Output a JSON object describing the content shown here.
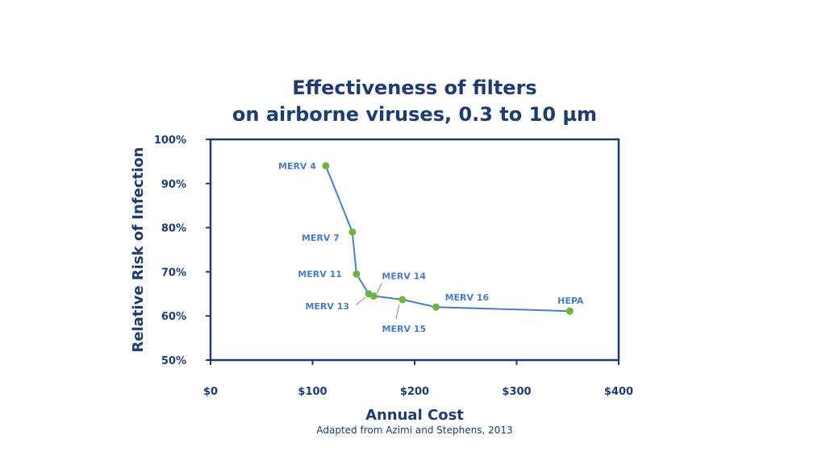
{
  "chart_data": {
    "type": "line",
    "title_line1": "Effectiveness of filters",
    "title_line2": "on airborne viruses, 0.3 to 10 µm",
    "xlabel": "Annual Cost",
    "ylabel": "Relative Risk of Infection",
    "source": "Adapted from Azimi and Stephens, 2013",
    "xlim": [
      0,
      400
    ],
    "ylim": [
      50,
      100
    ],
    "x_ticks": [
      0,
      100,
      200,
      300,
      400
    ],
    "x_tick_labels": [
      "$0",
      "$100",
      "$200",
      "$300",
      "$400"
    ],
    "y_ticks": [
      50,
      60,
      70,
      80,
      90,
      100
    ],
    "y_tick_labels": [
      "50%",
      "60%",
      "70%",
      "80%",
      "90%",
      "100%"
    ],
    "grid": false,
    "colors": {
      "axis": "#1f3c6e",
      "line": "#4a7fc1",
      "marker": "#6db33f",
      "label": "#4a7fc1"
    },
    "points": [
      {
        "label": "MERV 4",
        "x": 113,
        "y": 94
      },
      {
        "label": "MERV 7",
        "x": 139,
        "y": 79
      },
      {
        "label": "MERV 11",
        "x": 143,
        "y": 69.5
      },
      {
        "label": "MERV 13",
        "x": 155,
        "y": 65
      },
      {
        "label": "MERV 14",
        "x": 160,
        "y": 64.5
      },
      {
        "label": "MERV 15",
        "x": 188,
        "y": 63.7
      },
      {
        "label": "MERV 16",
        "x": 221,
        "y": 62
      },
      {
        "label": "HEPA",
        "x": 352,
        "y": 61.1
      }
    ]
  }
}
